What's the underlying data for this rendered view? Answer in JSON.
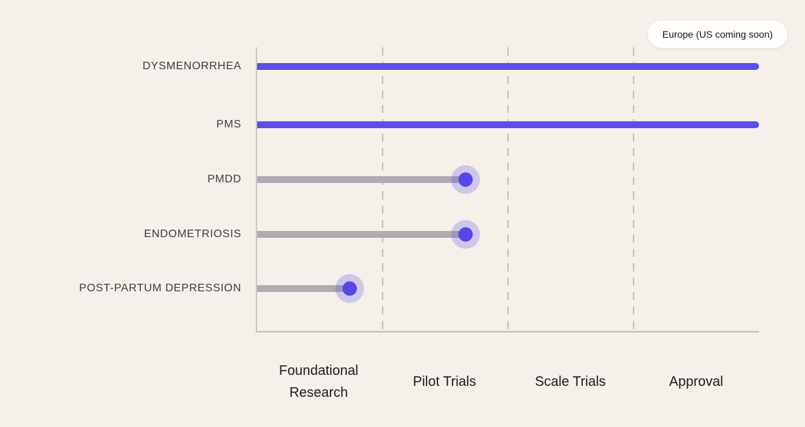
{
  "badge": {
    "label": "Europe (US coming soon)"
  },
  "chart_data": {
    "type": "bar",
    "orientation": "horizontal",
    "title": "",
    "xlabel": "",
    "ylabel": "",
    "stages": [
      "Foundational Research",
      "Pilot Trials",
      "Scale Trials",
      "Approval"
    ],
    "x_axis": {
      "min": 0,
      "max": 4,
      "unit": "development-stage"
    },
    "grid": "vertical-dashed",
    "legend_position": "top-right",
    "rows": [
      {
        "label": "DYSMENORRHEA",
        "progress": 4.0,
        "status": "complete"
      },
      {
        "label": "PMS",
        "progress": 4.0,
        "status": "complete"
      },
      {
        "label": "PMDD",
        "progress": 1.66,
        "status": "in-progress"
      },
      {
        "label": "ENDOMETRIOSIS",
        "progress": 1.66,
        "status": "in-progress"
      },
      {
        "label": "POST-PARTUM DEPRESSION",
        "progress": 0.74,
        "status": "in-progress"
      }
    ]
  },
  "colors": {
    "background": "#f5f1ea",
    "complete_bar": "#5b4ee9",
    "in_progress_bar": "#b0acb4",
    "dot": "#5746e8",
    "dot_halo": "rgba(97,83,232,0.26)",
    "axis": "#c2bdb7",
    "gridline": "#c4bfb9",
    "row_label_text": "#3e3b3f",
    "stage_label_text": "#1c1b1a",
    "badge_background": "#fffefc",
    "badge_text": "#141414"
  }
}
